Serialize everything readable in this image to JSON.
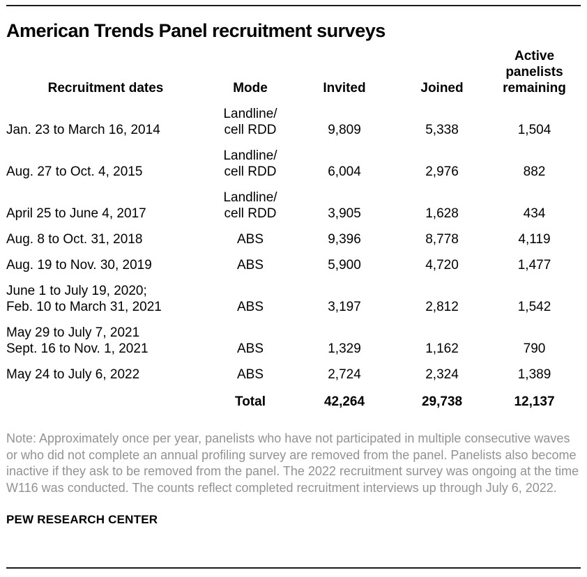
{
  "title": "American Trends Panel recruitment surveys",
  "chart_data": {
    "type": "table",
    "title": "American Trends Panel recruitment surveys",
    "columns": [
      "Recruitment dates",
      "Mode",
      "Invited",
      "Joined",
      "Active panelists remaining"
    ],
    "rows": [
      {
        "dates": "Jan. 23 to March 16, 2014",
        "mode": "Landline/\ncell RDD",
        "invited": "9,809",
        "joined": "5,338",
        "remaining": "1,504"
      },
      {
        "dates": "Aug. 27 to Oct. 4, 2015",
        "mode": "Landline/\ncell RDD",
        "invited": "6,004",
        "joined": "2,976",
        "remaining": "882"
      },
      {
        "dates": "April 25 to June 4, 2017",
        "mode": "Landline/\ncell RDD",
        "invited": "3,905",
        "joined": "1,628",
        "remaining": "434"
      },
      {
        "dates": "Aug. 8 to Oct. 31, 2018",
        "mode": "ABS",
        "invited": "9,396",
        "joined": "8,778",
        "remaining": "4,119"
      },
      {
        "dates": "Aug. 19 to Nov. 30, 2019",
        "mode": "ABS",
        "invited": "5,900",
        "joined": "4,720",
        "remaining": "1,477"
      },
      {
        "dates": "June 1 to July 19, 2020;\nFeb. 10 to March 31, 2021",
        "mode": "ABS",
        "invited": "3,197",
        "joined": "2,812",
        "remaining": "1,542"
      },
      {
        "dates": "May 29 to July 7, 2021\nSept. 16 to Nov. 1, 2021",
        "mode": "ABS",
        "invited": "1,329",
        "joined": "1,162",
        "remaining": "790"
      },
      {
        "dates": "May 24 to July 6, 2022",
        "mode": "ABS",
        "invited": "2,724",
        "joined": "2,324",
        "remaining": "1,389"
      }
    ],
    "total": {
      "label": "Total",
      "invited": "42,264",
      "joined": "29,738",
      "remaining": "12,137"
    }
  },
  "headers": {
    "dates": "Recruitment dates",
    "mode": "Mode",
    "invited": "Invited",
    "joined": "Joined",
    "remaining": "Active panelists remaining"
  },
  "note": "Note: Approximately once per year, panelists who have not participated in multiple consecutive waves or who did not complete an annual profiling survey are removed from the panel. Panelists also become inactive if they ask to be removed from the panel.  The 2022 recruitment survey was ongoing at the time W116 was conducted. The counts reflect completed recruitment interviews up through July 6, 2022.",
  "footer": "PEW RESEARCH CENTER",
  "colors": {
    "text": "#000000",
    "note_gray": "#929292",
    "rule": "#1a1a1a"
  }
}
